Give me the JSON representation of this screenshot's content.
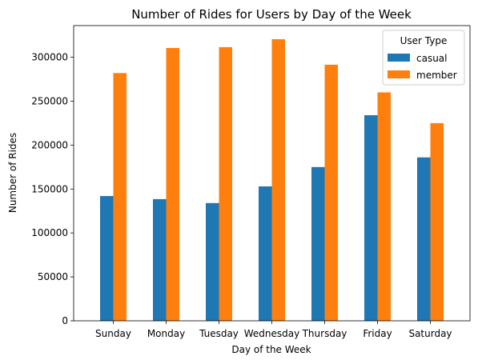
{
  "chart_data": {
    "type": "bar",
    "title": "Number of Rides for Users by Day of the Week",
    "xlabel": "Day of the Week",
    "ylabel": "Number of Rides",
    "categories": [
      "Sunday",
      "Monday",
      "Tuesday",
      "Wednesday",
      "Thursday",
      "Friday",
      "Saturday"
    ],
    "series": [
      {
        "name": "casual",
        "color": "#1f77b4",
        "values": [
          142000,
          138500,
          134000,
          153000,
          175000,
          234000,
          186000
        ]
      },
      {
        "name": "member",
        "color": "#ff7f0e",
        "values": [
          282000,
          310500,
          311500,
          320500,
          291500,
          260000,
          225000
        ]
      }
    ],
    "ylim": [
      0,
      336000
    ],
    "yticks": [
      0,
      50000,
      100000,
      150000,
      200000,
      250000,
      300000
    ],
    "ytick_labels": [
      "0",
      "50000",
      "100000",
      "150000",
      "200000",
      "250000",
      "300000"
    ],
    "grid": false,
    "legend": {
      "title": "User Type",
      "placement": "top-right"
    }
  }
}
